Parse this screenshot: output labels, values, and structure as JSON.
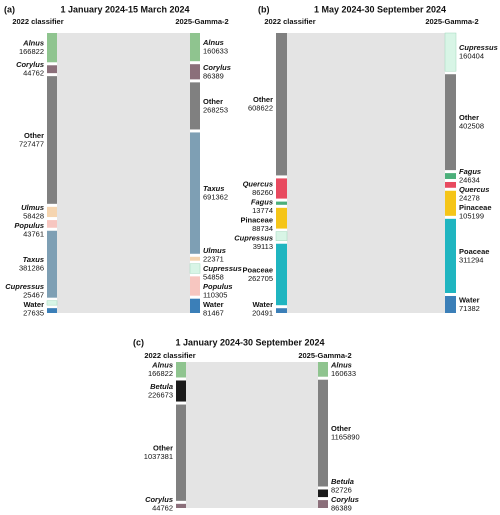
{
  "chart_data": [
    {
      "type": "sankey",
      "panel": "(a)",
      "title": "1 January 2024-15 March 2024",
      "left_title": "2022 classifier",
      "right_title": "2025-Gamma-2",
      "left": [
        {
          "name": "Alnus",
          "value": 166822,
          "color": "#8fc48f",
          "italic": true
        },
        {
          "name": "Corylus",
          "value": 44762,
          "color": "#8b6f7a",
          "italic": true
        },
        {
          "name": "Other",
          "value": 727477,
          "color": "#808080",
          "italic": false
        },
        {
          "name": "Ulmus",
          "value": 58428,
          "color": "#f5d5b0",
          "italic": true
        },
        {
          "name": "Populus",
          "value": 43761,
          "color": "#f7c6c0",
          "italic": true
        },
        {
          "name": "Taxus",
          "value": 381286,
          "color": "#7e9fb4",
          "italic": true
        },
        {
          "name": "Cupressus",
          "value": 25467,
          "color": "#d8f5e6",
          "italic": true
        },
        {
          "name": "Water",
          "value": 27635,
          "color": "#3b7fb8",
          "italic": false
        }
      ],
      "right": [
        {
          "name": "Alnus",
          "value": 160633,
          "color": "#8fc48f",
          "italic": true
        },
        {
          "name": "Corylus",
          "value": 86389,
          "color": "#8b6f7a",
          "italic": true
        },
        {
          "name": "Other",
          "value": 268253,
          "color": "#808080",
          "italic": false
        },
        {
          "name": "Taxus",
          "value": 691362,
          "color": "#7e9fb4",
          "italic": true
        },
        {
          "name": "Ulmus",
          "value": 22371,
          "color": "#f5d5b0",
          "italic": true
        },
        {
          "name": "Cupressus",
          "value": 54858,
          "color": "#d8f5e6",
          "italic": true
        },
        {
          "name": "Populus",
          "value": 110305,
          "color": "#f7c6c0",
          "italic": true
        },
        {
          "name": "Water",
          "value": 81467,
          "color": "#3b7fb8",
          "italic": false
        }
      ]
    },
    {
      "type": "sankey",
      "panel": "(b)",
      "title": "1 May 2024-30 September 2024",
      "left_title": "2022 classifier",
      "right_title": "2025-Gamma-2",
      "left": [
        {
          "name": "Other",
          "value": 608622,
          "color": "#808080",
          "italic": false
        },
        {
          "name": "Quercus",
          "value": 86260,
          "color": "#e84a5f",
          "italic": true
        },
        {
          "name": "Fagus",
          "value": 13774,
          "color": "#4caf7a",
          "italic": true
        },
        {
          "name": "Pinaceae",
          "value": 88734,
          "color": "#f5c518",
          "italic": false
        },
        {
          "name": "Cupressus",
          "value": 39113,
          "color": "#d8f5e6",
          "italic": true
        },
        {
          "name": "Poaceae",
          "value": 262705,
          "color": "#1fb5c0",
          "italic": false
        },
        {
          "name": "Water",
          "value": 20491,
          "color": "#3b7fb8",
          "italic": false
        }
      ],
      "right": [
        {
          "name": "Cupressus",
          "value": 160404,
          "color": "#d8f5e6",
          "italic": true
        },
        {
          "name": "Other",
          "value": 402508,
          "color": "#808080",
          "italic": false
        },
        {
          "name": "Fagus",
          "value": 24634,
          "color": "#4caf7a",
          "italic": true
        },
        {
          "name": "Quercus",
          "value": 24278,
          "color": "#e84a5f",
          "italic": true
        },
        {
          "name": "Pinaceae",
          "value": 105199,
          "color": "#f5c518",
          "italic": false
        },
        {
          "name": "Poaceae",
          "value": 311294,
          "color": "#1fb5c0",
          "italic": false
        },
        {
          "name": "Water",
          "value": 71382,
          "color": "#3b7fb8",
          "italic": false
        }
      ]
    },
    {
      "type": "sankey",
      "panel": "(c)",
      "title": "1 January 2024-30 September 2024",
      "left_title": "2022 classifier",
      "right_title": "2025-Gamma-2",
      "left": [
        {
          "name": "Alnus",
          "value": 166822,
          "color": "#8fc48f",
          "italic": true
        },
        {
          "name": "Betula",
          "value": 226673,
          "color": "#1a1a1a",
          "italic": true
        },
        {
          "name": "Other",
          "value": 1037381,
          "color": "#808080",
          "italic": false
        },
        {
          "name": "Corylus",
          "value": 44762,
          "color": "#8b6f7a",
          "italic": true
        }
      ],
      "right": [
        {
          "name": "Alnus",
          "value": 160633,
          "color": "#8fc48f",
          "italic": true
        },
        {
          "name": "Other",
          "value": 1165890,
          "color": "#808080",
          "italic": false
        },
        {
          "name": "Betula",
          "value": 82726,
          "color": "#1a1a1a",
          "italic": true
        },
        {
          "name": "Corylus",
          "value": 86389,
          "color": "#8b6f7a",
          "italic": true
        }
      ]
    }
  ]
}
